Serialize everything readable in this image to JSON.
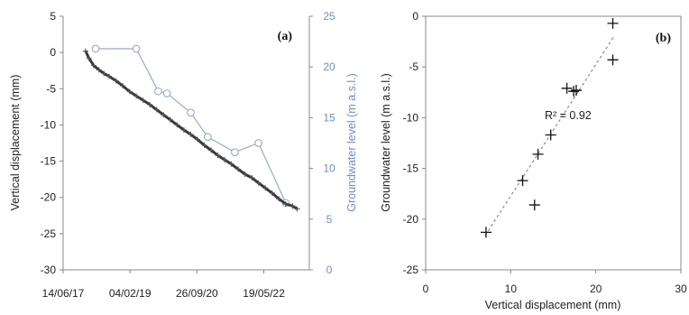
{
  "chart_data": [
    {
      "type": "line",
      "panel_label": "(a)",
      "xlabel": "",
      "ylabel": "Vertical displacement (mm)",
      "y2label": "Groundwater level (m a.s.l.)",
      "x_tick_labels": [
        "14/06/17",
        "04/02/19",
        "26/09/20",
        "19/05/22"
      ],
      "x_ticks": [
        "2017-06-14",
        "2019-02-04",
        "2020-09-26",
        "2022-05-19"
      ],
      "xlim": [
        "2017-06-14",
        "2023-07-01"
      ],
      "ylim": [
        -30,
        5
      ],
      "y_ticks": [
        -30,
        -25,
        -20,
        -15,
        -10,
        -5,
        0,
        5
      ],
      "y2lim": [
        0,
        25
      ],
      "y2_ticks": [
        0,
        5,
        10,
        15,
        20,
        25
      ],
      "grid": false,
      "colors": {
        "displacement": "#3a3a3a",
        "groundwater": "#9aa9cc",
        "y2_axis": "#6f8fc4"
      },
      "series": [
        {
          "axis": "left",
          "style": "dense markers",
          "x": [
            "2018-01-01",
            "2018-02-01",
            "2018-03-15",
            "2018-05-01",
            "2018-06-15",
            "2018-08-01",
            "2018-10-01",
            "2018-12-01",
            "2019-02-01",
            "2019-04-01",
            "2019-06-01",
            "2019-08-01",
            "2019-10-01",
            "2019-12-01",
            "2020-02-01",
            "2020-04-01",
            "2020-06-01",
            "2020-08-01",
            "2020-10-01",
            "2020-12-01",
            "2021-02-01",
            "2021-04-01",
            "2021-06-01",
            "2021-08-01",
            "2021-10-01",
            "2021-12-01",
            "2022-02-01",
            "2022-04-01",
            "2022-06-01",
            "2022-08-01",
            "2022-10-01",
            "2022-12-01",
            "2023-02-01",
            "2023-03-15"
          ],
          "values": [
            0.2,
            -0.8,
            -1.8,
            -2.4,
            -2.9,
            -3.3,
            -3.9,
            -4.6,
            -5.4,
            -6.0,
            -6.6,
            -7.2,
            -7.9,
            -8.6,
            -9.3,
            -10.0,
            -10.7,
            -11.3,
            -12.0,
            -12.8,
            -13.5,
            -14.2,
            -14.8,
            -15.4,
            -16.1,
            -16.8,
            -17.3,
            -18.0,
            -18.7,
            -19.4,
            -20.2,
            -20.9,
            -21.2,
            -21.6
          ]
        },
        {
          "axis": "right",
          "style": "line with open circle markers",
          "x": [
            "2018-04-01",
            "2019-04-01",
            "2019-10-15",
            "2020-01-01",
            "2020-08-01",
            "2021-01-01",
            "2021-09-01",
            "2022-04-01",
            "2022-12-01"
          ],
          "values": [
            21.8,
            21.8,
            17.6,
            17.4,
            15.5,
            13.1,
            11.6,
            12.5,
            6.6
          ]
        }
      ]
    },
    {
      "type": "scatter",
      "panel_label": "(b)",
      "xlabel": "Vertical displacement (mm)",
      "ylabel": "Groundwater level (m a.s.l.)",
      "xlim": [
        0,
        30
      ],
      "x_ticks": [
        0,
        10,
        20,
        30
      ],
      "ylim": [
        -25,
        0
      ],
      "y_ticks": [
        -25,
        -20,
        -15,
        -10,
        -5,
        0
      ],
      "grid": false,
      "annotation": "R² = 0.92",
      "trendline": {
        "style": "dashed",
        "x": [
          7.0,
          22.2
        ],
        "y": [
          -21.6,
          -1.9
        ]
      },
      "marker": "+",
      "points": [
        {
          "x": 22.0,
          "y": -0.7
        },
        {
          "x": 22.0,
          "y": -4.3
        },
        {
          "x": 16.6,
          "y": -7.1
        },
        {
          "x": 17.7,
          "y": -7.3
        },
        {
          "x": 17.4,
          "y": -7.4
        },
        {
          "x": 14.7,
          "y": -11.7
        },
        {
          "x": 13.2,
          "y": -13.6
        },
        {
          "x": 11.4,
          "y": -16.2
        },
        {
          "x": 12.8,
          "y": -18.6
        },
        {
          "x": 7.1,
          "y": -21.3
        }
      ]
    }
  ]
}
